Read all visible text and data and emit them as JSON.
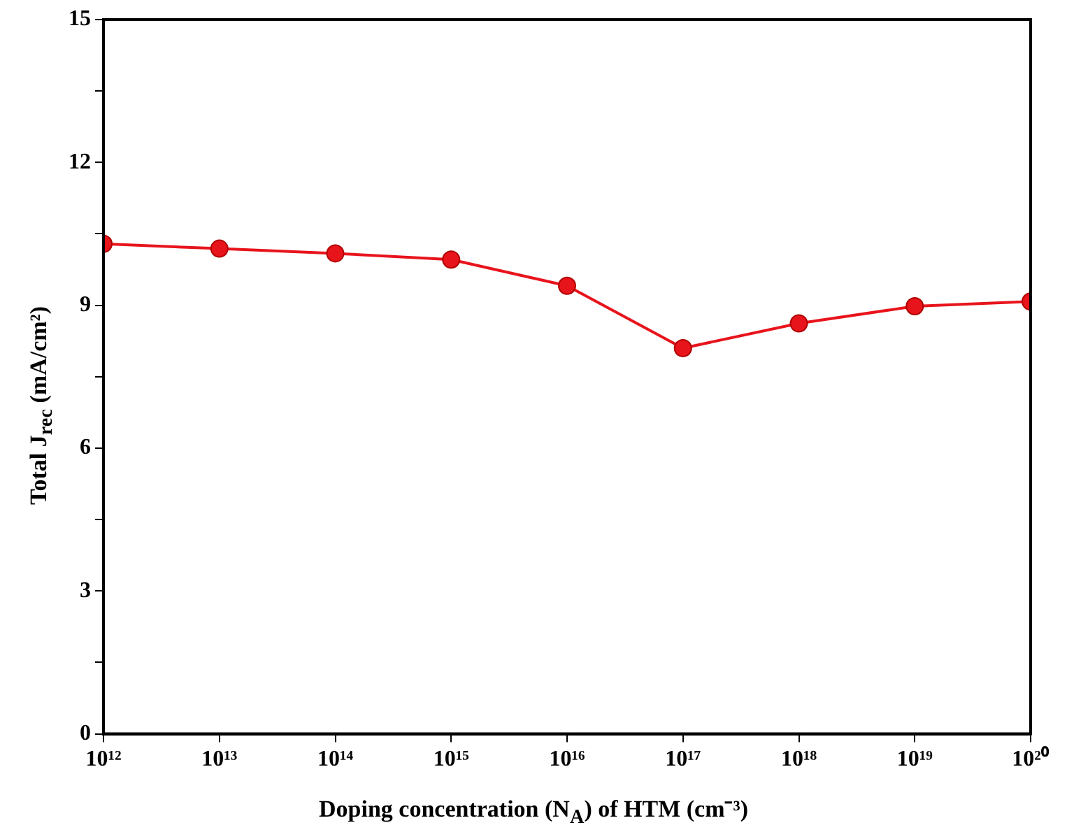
{
  "chart_data": {
    "type": "line",
    "xlabel": "Doping concentration (N$_{A}$) of HTM (cm⁻³)",
    "ylabel": "Total J$_{rec}$ (mA/cm²)",
    "x": [
      1000000000000.0,
      10000000000000.0,
      100000000000000.0,
      1000000000000000.0,
      1e+16,
      1e+17,
      1e+18,
      1e+19,
      1e+20
    ],
    "series": [
      {
        "color": "#e8141c",
        "values": [
          10.29,
          10.19,
          10.09,
          9.96,
          9.41,
          8.1,
          8.62,
          8.98,
          9.08
        ]
      }
    ],
    "log": "x",
    "xlim": [
      1000000000000.0,
      1e+20
    ],
    "xticks": [
      {
        "value": 1000000000000.0,
        "label": "10¹²"
      },
      {
        "value": 10000000000000.0,
        "label": "10¹³"
      },
      {
        "value": 100000000000000.0,
        "label": "10¹⁴"
      },
      {
        "value": 1000000000000000.0,
        "label": "10¹⁵"
      },
      {
        "value": 1e+16,
        "label": "10¹⁶"
      },
      {
        "value": 1e+17,
        "label": "10¹⁷"
      },
      {
        "value": 1e+18,
        "label": "10¹⁸"
      },
      {
        "value": 1e+19,
        "label": "10¹⁹"
      },
      {
        "value": 1e+20,
        "label": "10²⁰"
      }
    ],
    "ylim": [
      0,
      15
    ],
    "yticks": [
      0,
      {
        "value": 1.5,
        "label": null
      },
      3,
      {
        "value": 4.5,
        "label": null
      },
      6,
      {
        "value": 7.5,
        "label": null
      },
      9,
      {
        "value": 10.5,
        "label": null
      },
      12,
      {
        "value": 13.5,
        "label": null
      },
      15
    ],
    "grid": false,
    "legend": false,
    "marker": "circle",
    "line_style": "solid"
  }
}
